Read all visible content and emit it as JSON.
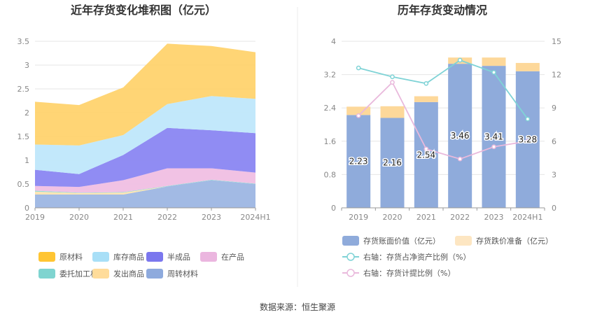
{
  "source_note": "数据来源：恒生聚源",
  "chart_data": [
    {
      "type": "area",
      "stacked": true,
      "title": "近年存货变化堆积图（亿元）",
      "categories": [
        "2019",
        "2020",
        "2021",
        "2022",
        "2023",
        "2024H1"
      ],
      "ylim": [
        0,
        3.5
      ],
      "yticks": [
        "0",
        "0.5",
        "1",
        "1.5",
        "2",
        "2.5",
        "3",
        "3.5"
      ],
      "legend_position": "bottom",
      "series": [
        {
          "name": "周转材料",
          "color": "#9db6e3",
          "values": [
            0.28,
            0.28,
            0.28,
            0.45,
            0.58,
            0.5
          ]
        },
        {
          "name": "发出商品",
          "color": "#fde4b0",
          "values": [
            0.06,
            0.03,
            0.04,
            0.0,
            0.0,
            0.0
          ]
        },
        {
          "name": "委托加工材料",
          "color": "#8fdad4",
          "values": [
            0.02,
            0.01,
            0.01,
            0.01,
            0.01,
            0.01
          ]
        },
        {
          "name": "在产品",
          "color": "#f0bfe3",
          "values": [
            0.1,
            0.12,
            0.25,
            0.37,
            0.24,
            0.23
          ]
        },
        {
          "name": "半成品",
          "color": "#8a86f2",
          "values": [
            0.34,
            0.27,
            0.53,
            0.85,
            0.8,
            0.83
          ]
        },
        {
          "name": "库存商品",
          "color": "#bfe7fb",
          "values": [
            0.53,
            0.6,
            0.42,
            0.5,
            0.72,
            0.72
          ]
        },
        {
          "name": "原材料",
          "color": "#ffd36e",
          "values": [
            0.9,
            0.85,
            1.0,
            1.27,
            1.05,
            0.98
          ]
        }
      ],
      "legend_order": [
        "原材料",
        "库存商品",
        "半成品",
        "在产品",
        "委托加工材料",
        "发出商品",
        "周转材料"
      ],
      "legend_colors": {
        "原材料": "#ffc533",
        "库存商品": "#a8dff7",
        "半成品": "#7b77ee",
        "在产品": "#ebb6df",
        "委托加工材料": "#7fd4d0",
        "发出商品": "#ffdc9a",
        "周转材料": "#8eaadd"
      }
    },
    {
      "type": "bar",
      "stacked": true,
      "title": "历年存货变动情况",
      "categories": [
        "2019",
        "2020",
        "2021",
        "2022",
        "2023",
        "2024H1"
      ],
      "ylim": [
        0,
        4
      ],
      "yticks": [
        "0",
        "0.8",
        "1.6",
        "2.4",
        "3.2",
        "4"
      ],
      "y2lim": [
        0,
        15
      ],
      "y2ticks": [
        "0",
        "3",
        "6",
        "9",
        "12",
        "15"
      ],
      "legend_position": "bottom",
      "series": [
        {
          "name": "存货账面价值（亿元）",
          "type": "bar",
          "axis": "left",
          "color": "#8fabdb",
          "values": [
            2.23,
            2.16,
            2.54,
            3.46,
            3.41,
            3.28
          ],
          "labels": [
            "2.23",
            "2.16",
            "2.54",
            "3.46",
            "3.41",
            "3.28"
          ]
        },
        {
          "name": "存货跌价准备（亿元）",
          "type": "bar",
          "axis": "left",
          "color": "#fdd89a",
          "legend_color": "#fde6c2",
          "values": [
            0.2,
            0.28,
            0.14,
            0.15,
            0.2,
            0.2
          ]
        },
        {
          "name": "右轴：存货占净资产比例（%）",
          "type": "line",
          "axis": "right",
          "color": "#7fd3d6",
          "values": [
            12.6,
            11.8,
            11.2,
            13.3,
            12.2,
            8.0
          ]
        },
        {
          "name": "右轴：存货计提比例（%）",
          "type": "line",
          "axis": "right",
          "color": "#e9b9dc",
          "values": [
            8.3,
            11.3,
            5.3,
            4.4,
            5.5,
            6.0
          ]
        }
      ]
    }
  ]
}
